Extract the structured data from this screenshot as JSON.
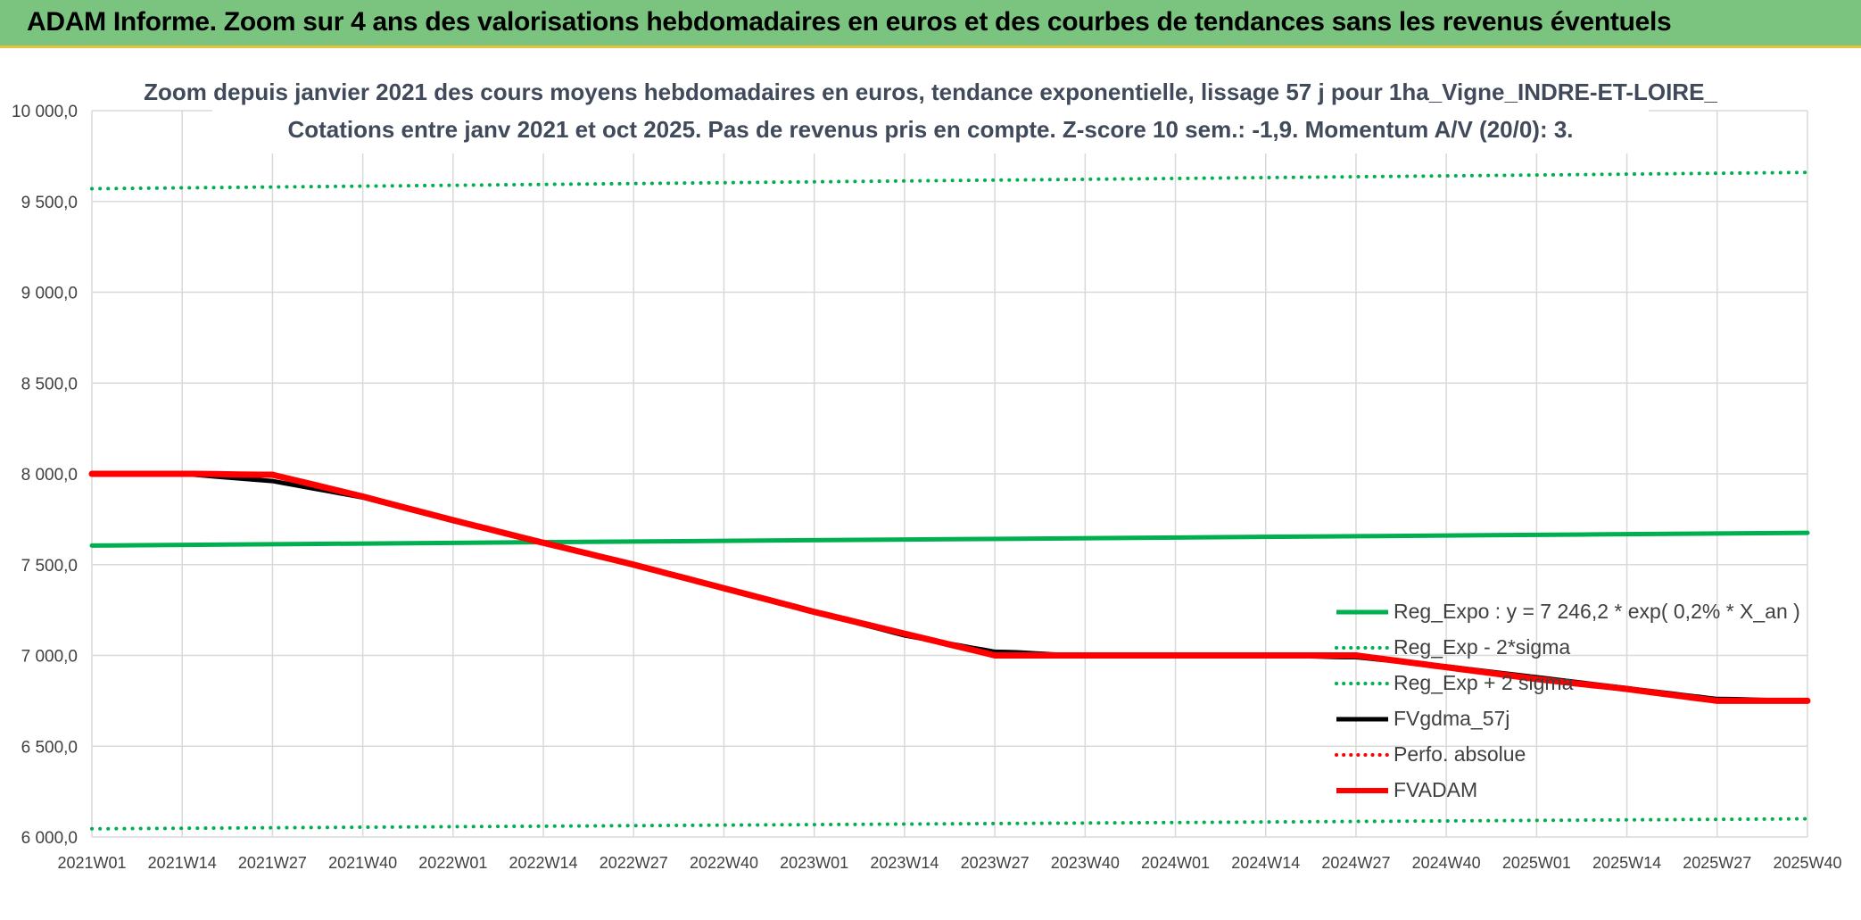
{
  "banner": {
    "title": "ADAM Informe. Zoom sur 4 ans des valorisations hebdomadaires en euros et des courbes de tendances sans les revenus éventuels",
    "bg_color": "#7ac47f"
  },
  "chart_data": {
    "type": "line",
    "title_line1": "Zoom depuis janvier 2021 des cours moyens hebdomadaires en euros, tendance exponentielle, lissage 57 j pour 1ha_Vigne_INDRE-ET-LOIRE_",
    "title_line2": "Cotations entre janv 2021 et oct 2025. Pas de revenus pris en compte. Z-score 10 sem.: -1,9. Momentum A/V (20/0): 3.",
    "ylim": [
      6000,
      10000
    ],
    "yticks": [
      6000,
      6500,
      7000,
      7500,
      8000,
      8500,
      9000,
      9500,
      10000
    ],
    "ytick_labels": [
      "6 000,0",
      "6 500,0",
      "7 000,0",
      "7 500,0",
      "8 000,0",
      "8 500,0",
      "9 000,0",
      "9 500,0",
      "10 000,0"
    ],
    "x_ticks": [
      "2021W01",
      "2021W14",
      "2021W27",
      "2021W40",
      "2022W01",
      "2022W14",
      "2022W27",
      "2022W40",
      "2023W01",
      "2023W14",
      "2023W27",
      "2023W40",
      "2024W01",
      "2024W14",
      "2024W27",
      "2024W40",
      "2025W01",
      "2025W14",
      "2025W27",
      "2025W40"
    ],
    "grid": true,
    "legend_position": "right",
    "series": [
      {
        "name": "Reg_Expo : y = 7 246,2 * exp( 0,2% *  X_an )",
        "style": "solid",
        "color": "#00b050",
        "width": 5,
        "points": [
          [
            0,
            7605
          ],
          [
            19,
            7675
          ]
        ]
      },
      {
        "name": "Reg_Exp - 2*sigma",
        "style": "dotted",
        "color": "#00b050",
        "width": 4,
        "points": [
          [
            0,
            6045
          ],
          [
            19,
            6100
          ]
        ]
      },
      {
        "name": "Reg_Exp + 2 sigma",
        "style": "dotted",
        "color": "#00b050",
        "width": 4,
        "points": [
          [
            0,
            9570
          ],
          [
            19,
            9660
          ]
        ]
      },
      {
        "name": "FVgdma_57j",
        "style": "solid",
        "color": "#000000",
        "width": 5,
        "points": [
          [
            0,
            8000
          ],
          [
            1,
            8000
          ],
          [
            2,
            7960
          ],
          [
            3,
            7870
          ],
          [
            4,
            7740
          ],
          [
            5,
            7620
          ],
          [
            6,
            7500
          ],
          [
            7,
            7370
          ],
          [
            8,
            7240
          ],
          [
            9,
            7110
          ],
          [
            10,
            7020
          ],
          [
            11,
            7000
          ],
          [
            12,
            7000
          ],
          [
            13,
            7000
          ],
          [
            14,
            6990
          ],
          [
            15,
            6940
          ],
          [
            16,
            6880
          ],
          [
            17,
            6820
          ],
          [
            18,
            6760
          ],
          [
            19,
            6750
          ]
        ]
      },
      {
        "name": "Perfo. absolue",
        "style": "dotted",
        "color": "#ff0000",
        "width": 3,
        "points": []
      },
      {
        "name": "FVADAM",
        "style": "solid",
        "color": "#ff0000",
        "width": 7,
        "points": [
          [
            0,
            8000
          ],
          [
            1,
            8000
          ],
          [
            2,
            7995
          ],
          [
            3,
            7875
          ],
          [
            4,
            7745
          ],
          [
            5,
            7620
          ],
          [
            6,
            7500
          ],
          [
            7,
            7370
          ],
          [
            8,
            7240
          ],
          [
            9,
            7120
          ],
          [
            10,
            7000
          ],
          [
            11,
            7000
          ],
          [
            12,
            7000
          ],
          [
            13,
            7000
          ],
          [
            14,
            7000
          ],
          [
            15,
            6935
          ],
          [
            16,
            6870
          ],
          [
            17,
            6815
          ],
          [
            18,
            6750
          ],
          [
            19,
            6750
          ]
        ]
      }
    ]
  }
}
